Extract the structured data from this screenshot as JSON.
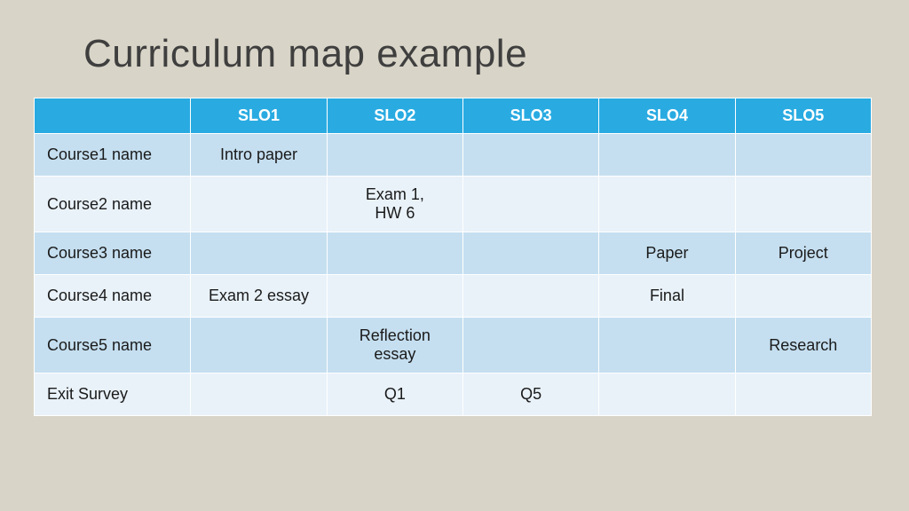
{
  "title": "Curriculum map example",
  "table": {
    "type": "table",
    "header_bg": "#29abe2",
    "header_fg": "#ffffff",
    "row_band_a": "#c5dff0",
    "row_band_b": "#e9f2f9",
    "border_color": "#ffffff",
    "font_family": "Century Gothic",
    "title_fontsize": 44,
    "cell_fontsize": 18,
    "columns": [
      "",
      "SLO1",
      "SLO2",
      "SLO3",
      "SLO4",
      "SLO5"
    ],
    "rows": [
      {
        "label": "Course1 name",
        "cells": [
          "Intro paper",
          "",
          "",
          "",
          ""
        ]
      },
      {
        "label": "Course2 name",
        "cells": [
          "",
          "Exam 1,\nHW 6",
          "",
          "",
          ""
        ]
      },
      {
        "label": "Course3 name",
        "cells": [
          "",
          "",
          "",
          "Paper",
          "Project"
        ]
      },
      {
        "label": "Course4 name",
        "cells": [
          "Exam 2 essay",
          "",
          "",
          "Final",
          ""
        ]
      },
      {
        "label": "Course5 name",
        "cells": [
          "",
          "Reflection\nessay",
          "",
          "",
          "Research"
        ]
      },
      {
        "label": "Exit Survey",
        "cells": [
          "",
          "Q1",
          "Q5",
          "",
          ""
        ]
      }
    ]
  },
  "background_color": "#d8d4c7"
}
